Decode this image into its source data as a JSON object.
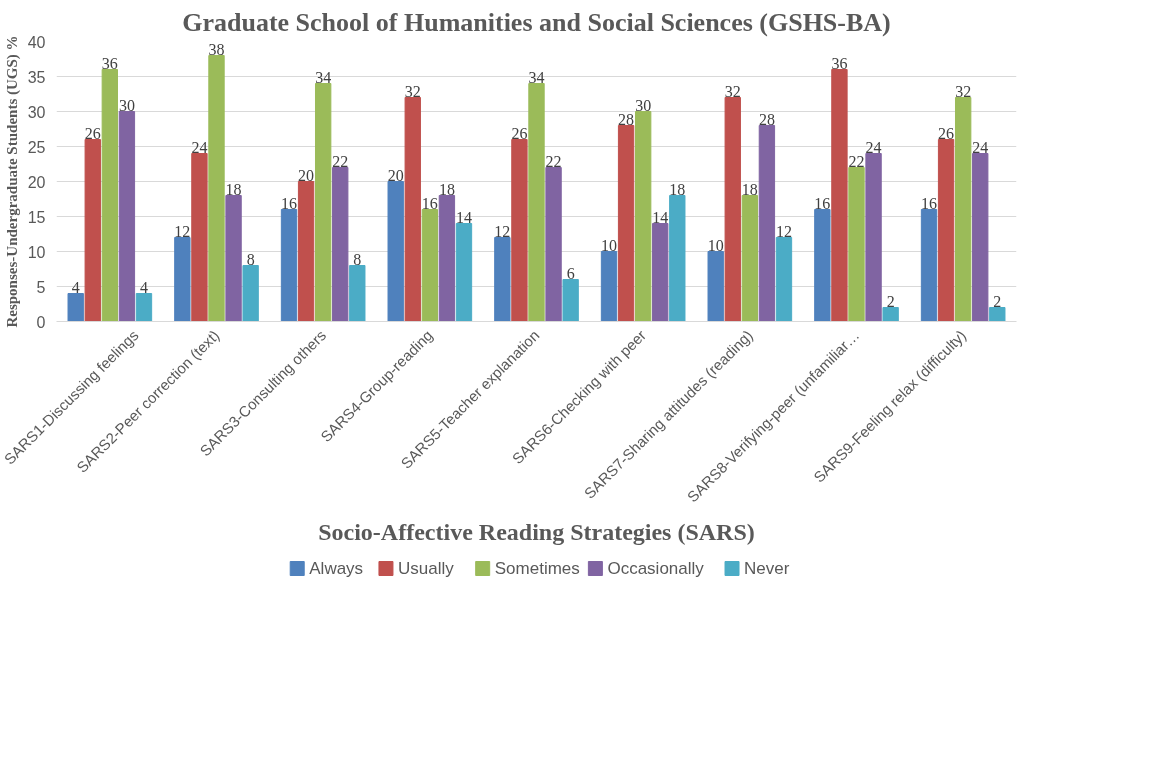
{
  "chart_data": {
    "type": "bar",
    "title": "Graduate School of Humanities and Social Sciences (GSHS-BA)",
    "xlabel": "Socio-Affective Reading Strategies (SARS)",
    "ylabel": "Responses-Undergraduate Students (UGS) %",
    "categories": [
      "SARS1-Discussing feelings",
      "SARS2-Peer correction (text)",
      "SARS3-Consulting others",
      "SARS4-Group-reading",
      "SARS5-Teacher explanation",
      "SARS6-Checking with peer",
      "SARS7-Sharing attitudes (reading)",
      "SARS8-Verifying-peer (unfamiliar…",
      "SARS9-Feeling relax (difficulty)"
    ],
    "series": [
      {
        "name": "Always",
        "color": "#4f81bd",
        "values": [
          4,
          12,
          16,
          20,
          12,
          10,
          10,
          16,
          16
        ]
      },
      {
        "name": "Usually",
        "color": "#c0504d",
        "values": [
          26,
          24,
          20,
          32,
          26,
          28,
          32,
          36,
          26
        ]
      },
      {
        "name": "Sometimes",
        "color": "#9bbb59",
        "values": [
          36,
          38,
          34,
          16,
          34,
          30,
          18,
          22,
          32
        ]
      },
      {
        "name": "Occasionally",
        "color": "#8064a2",
        "values": [
          30,
          18,
          22,
          18,
          22,
          14,
          28,
          24,
          24
        ]
      },
      {
        "name": "Never",
        "color": "#4bacc6",
        "values": [
          4,
          8,
          8,
          14,
          6,
          18,
          12,
          2,
          2
        ]
      }
    ],
    "ylim": [
      0,
      40
    ],
    "yticks": [
      0,
      5,
      10,
      15,
      20,
      25,
      30,
      35,
      40
    ],
    "grid": "y",
    "legend": "bottom",
    "data_labels": true
  }
}
